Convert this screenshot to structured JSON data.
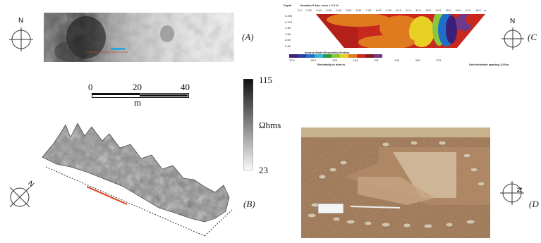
{
  "panels": {
    "a": {
      "label": "(A)"
    },
    "b": {
      "label": "(B)"
    },
    "c": {
      "label": "(C"
    },
    "d": {
      "label": "(D"
    }
  },
  "compass_north": "N",
  "scale_bar": {
    "ticks": [
      "0",
      "20",
      "40"
    ],
    "unit": "m"
  },
  "colorbar": {
    "max": "115",
    "min": "23",
    "unit": "Ωhms"
  },
  "resistivity_section": {
    "depth_label": "Depth",
    "header": "Iteration 5 Abs. error = 2.3 %",
    "x_ticks": [
      "0.0",
      "1.00",
      "2.00",
      "3.00",
      "4.00",
      "5.00",
      "6.00",
      "7.00",
      "8.00",
      "9.00",
      "10.0",
      "11.0",
      "12.0",
      "13.0",
      "14.0",
      "15.0",
      "16.0",
      "17.0",
      "18.0"
    ],
    "x_unit": "m.",
    "depth_ticks": [
      "0.250",
      "0.775",
      "1.35",
      "1.98",
      "2.69",
      "3.46"
    ],
    "model_title": "Inverse Model Resistivity Section",
    "legend_values": [
      "70.2",
      "99.0",
      "123",
      "154",
      "192",
      "240",
      "299",
      "373"
    ],
    "legend_unit_label": "Resistivity in ohm.m",
    "spacing_note": "Unit electrode spacing 1.00 m."
  },
  "colors": {
    "legend": [
      "#3b1f7a",
      "#2b3fa0",
      "#1f6fc8",
      "#36b4d6",
      "#2c9a3c",
      "#8cc63f",
      "#e8d024",
      "#e07a1e",
      "#c8281e",
      "#8a1a1a",
      "#6b3a8a"
    ],
    "red_line": "#e0401a"
  }
}
